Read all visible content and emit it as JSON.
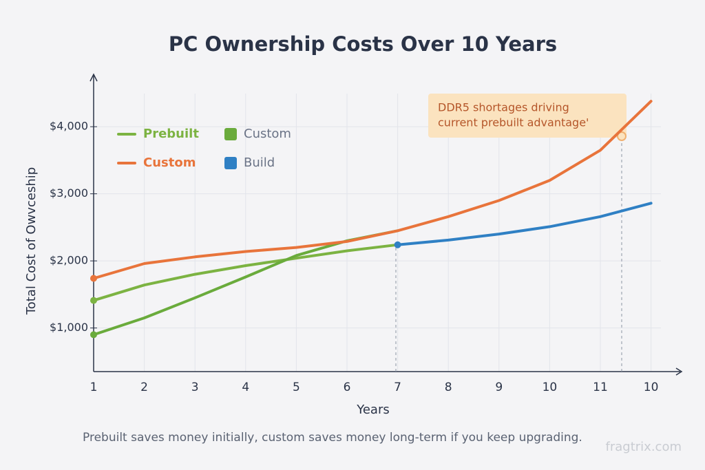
{
  "chart_data": {
    "type": "line",
    "title": "PC Ownership Costs Over 10 Years",
    "x_label": "Years",
    "y_label": "Total Cost of Owvceship",
    "caption": "Prebuilt saves money initially, custom saves money long-term if you keep upgrading.",
    "watermark": "fragtrix.com",
    "annotation": [
      "DDR5 shortages driving",
      "current prebuilt advantage'"
    ],
    "categories": [
      "1",
      "2",
      "3",
      "4",
      "5",
      "6",
      "7",
      "8",
      "9",
      "10",
      "11",
      "10"
    ],
    "ylim": [
      350,
      4750
    ],
    "yticks": [
      {
        "value": 1000,
        "label": "$1,000"
      },
      {
        "value": 2000,
        "label": "$2,000"
      },
      {
        "value": 3000,
        "label": "$3,000"
      },
      {
        "value": 4000,
        "label": "$4,000"
      }
    ],
    "grid": true,
    "series": [
      {
        "name": "Prebuilt",
        "color": "#7cb342",
        "legend_marker": "line",
        "values": [
          1410,
          1640,
          1800,
          1930,
          2040,
          2150,
          2240,
          null,
          null,
          null,
          null,
          null
        ]
      },
      {
        "name": "Custom",
        "color": "#6aab3c",
        "legend_marker": "square",
        "values": [
          900,
          1150,
          1450,
          1760,
          2080,
          2300,
          2450,
          null,
          null,
          null,
          null,
          null
        ]
      },
      {
        "name": "Custom",
        "color": "#e8743b",
        "legend_marker": "line",
        "values": [
          1740,
          1960,
          2060,
          2140,
          2200,
          2290,
          2450,
          2660,
          2900,
          3200,
          3650,
          4380
        ]
      },
      {
        "name": "Build",
        "color": "#2f80c4",
        "legend_marker": "square",
        "values": [
          null,
          null,
          null,
          null,
          null,
          null,
          2240,
          2310,
          2400,
          2510,
          2660,
          2860
        ]
      }
    ]
  }
}
